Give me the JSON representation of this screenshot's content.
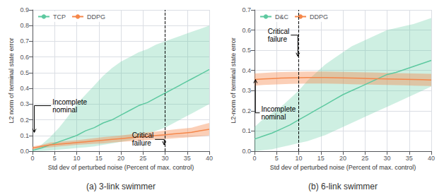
{
  "chart_data": [
    {
      "type": "line",
      "title": "(a) 3-link swimmer",
      "xlabel": "Std dev of perturbed noise (Percent of max. control)",
      "ylabel": "L2 norm of terminal state error",
      "x": [
        0,
        2,
        4,
        6,
        8,
        10,
        12,
        14,
        16,
        18,
        20,
        22,
        24,
        26,
        28,
        30,
        32,
        34,
        36,
        38,
        40
      ],
      "xlim": [
        0,
        40
      ],
      "xticks": [
        0,
        5,
        10,
        15,
        20,
        25,
        30,
        35,
        40
      ],
      "ylim": [
        0.0,
        0.9
      ],
      "yticks": [
        {
          "value": 0.0,
          "label": "0.0"
        },
        0.1,
        0.2,
        0.3,
        0.4,
        0.5,
        0.6,
        0.7,
        0.8,
        0.9
      ],
      "grid": true,
      "legend": "upper left",
      "series": [
        {
          "name": "TCP",
          "color": "#5dc9a0",
          "values": [
            0.005,
            0.02,
            0.04,
            0.06,
            0.08,
            0.1,
            0.13,
            0.15,
            0.18,
            0.2,
            0.23,
            0.26,
            0.29,
            0.31,
            0.34,
            0.37,
            0.4,
            0.43,
            0.46,
            0.49,
            0.52
          ],
          "std_lo": [
            0.0,
            0.001,
            0.005,
            0.01,
            0.015,
            0.02,
            0.025,
            0.03,
            0.04,
            0.05,
            0.06,
            0.07,
            0.09,
            0.11,
            0.13,
            0.15,
            0.18,
            0.21,
            0.24,
            0.27,
            0.3
          ],
          "std_hi": [
            0.01,
            0.04,
            0.09,
            0.15,
            0.22,
            0.3,
            0.36,
            0.42,
            0.48,
            0.53,
            0.57,
            0.6,
            0.63,
            0.65,
            0.68,
            0.7,
            0.72,
            0.74,
            0.76,
            0.78,
            0.8
          ]
        },
        {
          "name": "DDPG",
          "color": "#f5874a",
          "values": [
            0.02,
            0.03,
            0.04,
            0.045,
            0.05,
            0.055,
            0.06,
            0.065,
            0.07,
            0.075,
            0.08,
            0.085,
            0.09,
            0.095,
            0.1,
            0.105,
            0.11,
            0.115,
            0.12,
            0.13,
            0.14
          ],
          "std_lo": [
            0.01,
            0.02,
            0.025,
            0.03,
            0.035,
            0.04,
            0.044,
            0.047,
            0.05,
            0.055,
            0.06,
            0.063,
            0.066,
            0.07,
            0.075,
            0.078,
            0.082,
            0.086,
            0.09,
            0.095,
            0.1
          ],
          "std_hi": [
            0.03,
            0.04,
            0.055,
            0.06,
            0.065,
            0.07,
            0.076,
            0.083,
            0.09,
            0.095,
            0.1,
            0.107,
            0.114,
            0.12,
            0.125,
            0.132,
            0.138,
            0.144,
            0.15,
            0.165,
            0.18
          ]
        }
      ],
      "vlines": [
        {
          "x": 30,
          "color": "#000000",
          "line_style": "dashed"
        }
      ],
      "annotations": [
        {
          "text": "Incomplete\nnominal",
          "xy": [
            0.4,
            0.12
          ],
          "xytext": [
            4.5,
            0.29
          ]
        },
        {
          "text": "Critical\nfailure",
          "xy": [
            29.8,
            0.04
          ],
          "xytext": [
            22.5,
            0.075
          ]
        }
      ]
    },
    {
      "type": "line",
      "title": "(b) 6-link swimmer",
      "xlabel": "Std dev of perturbed noise (Percent of max. control)",
      "ylabel": "L2-norm of terminal state error",
      "x": [
        0,
        2,
        4,
        6,
        8,
        10,
        12,
        14,
        16,
        18,
        20,
        22,
        24,
        26,
        28,
        30,
        32,
        34,
        36,
        38,
        40
      ],
      "xlim": [
        0,
        40
      ],
      "xticks": [
        0,
        5,
        10,
        15,
        20,
        25,
        30,
        35,
        40
      ],
      "ylim": [
        0.0,
        0.7
      ],
      "yticks": [
        {
          "value": 0.0,
          "label": "0.0"
        },
        0.1,
        0.2,
        0.3,
        0.4,
        0.5,
        0.6,
        0.7
      ],
      "grid": true,
      "legend": "upper left",
      "series": [
        {
          "name": "D&C",
          "color": "#5dc9a0",
          "values": [
            0.06,
            0.075,
            0.09,
            0.11,
            0.13,
            0.155,
            0.18,
            0.205,
            0.23,
            0.255,
            0.28,
            0.3,
            0.32,
            0.34,
            0.36,
            0.38,
            0.39,
            0.405,
            0.42,
            0.435,
            0.45
          ],
          "std_lo": [
            0.0,
            0.005,
            0.01,
            0.02,
            0.03,
            0.04,
            0.05,
            0.065,
            0.08,
            0.1,
            0.12,
            0.14,
            0.16,
            0.18,
            0.2,
            0.22,
            0.24,
            0.26,
            0.28,
            0.3,
            0.32
          ],
          "std_hi": [
            0.12,
            0.16,
            0.19,
            0.22,
            0.26,
            0.3,
            0.35,
            0.39,
            0.43,
            0.46,
            0.49,
            0.52,
            0.54,
            0.56,
            0.58,
            0.6,
            0.61,
            0.62,
            0.63,
            0.645,
            0.66
          ]
        },
        {
          "name": "DDPG",
          "color": "#f5874a",
          "values": [
            0.355,
            0.358,
            0.36,
            0.362,
            0.363,
            0.364,
            0.365,
            0.365,
            0.365,
            0.364,
            0.363,
            0.362,
            0.361,
            0.36,
            0.359,
            0.358,
            0.357,
            0.356,
            0.355,
            0.354,
            0.353
          ],
          "std_lo": [
            0.325,
            0.328,
            0.33,
            0.332,
            0.333,
            0.334,
            0.335,
            0.335,
            0.335,
            0.334,
            0.333,
            0.332,
            0.331,
            0.33,
            0.329,
            0.328,
            0.327,
            0.326,
            0.325,
            0.324,
            0.323
          ],
          "std_hi": [
            0.385,
            0.388,
            0.39,
            0.392,
            0.393,
            0.394,
            0.395,
            0.395,
            0.395,
            0.394,
            0.393,
            0.392,
            0.391,
            0.39,
            0.389,
            0.388,
            0.387,
            0.386,
            0.385,
            0.384,
            0.383
          ]
        }
      ],
      "vlines": [
        {
          "x": 10,
          "color": "#000000",
          "line_style": "dashed"
        }
      ],
      "annotations": [
        {
          "text": "Incomplete\nnominal",
          "xy": [
            0.2,
            0.355
          ],
          "xytext": [
            1.5,
            0.19
          ]
        },
        {
          "text": "Critical\nfailure",
          "xy": [
            9.8,
            0.47
          ],
          "xytext": [
            3.0,
            0.575
          ]
        }
      ]
    }
  ]
}
